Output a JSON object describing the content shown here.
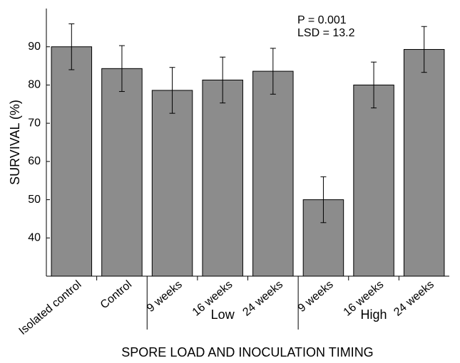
{
  "chart_data": {
    "type": "bar",
    "categories": [
      "Isolated control",
      "Control",
      "9 weeks",
      "16 weeks",
      "24 weeks",
      "9 weeks",
      "16 weeks",
      "24 weeks"
    ],
    "category_groups": [
      null,
      null,
      "Low",
      "Low",
      "Low",
      "High",
      "High",
      "High"
    ],
    "values": [
      90,
      84.3,
      78.6,
      81.3,
      83.6,
      50,
      80,
      89.3
    ],
    "errors": [
      6,
      6,
      6,
      6,
      6,
      6,
      6,
      6
    ],
    "color": "#8c8c8c",
    "ylim": [
      30,
      100
    ],
    "yticks": [
      40,
      50,
      60,
      70,
      80,
      90
    ],
    "y_label": "SURVIVAL (%)",
    "x_label": "SPORE LOAD AND INOCULATION TIMING",
    "annotations": [
      "P = 0.001",
      "LSD = 13.2"
    ]
  }
}
